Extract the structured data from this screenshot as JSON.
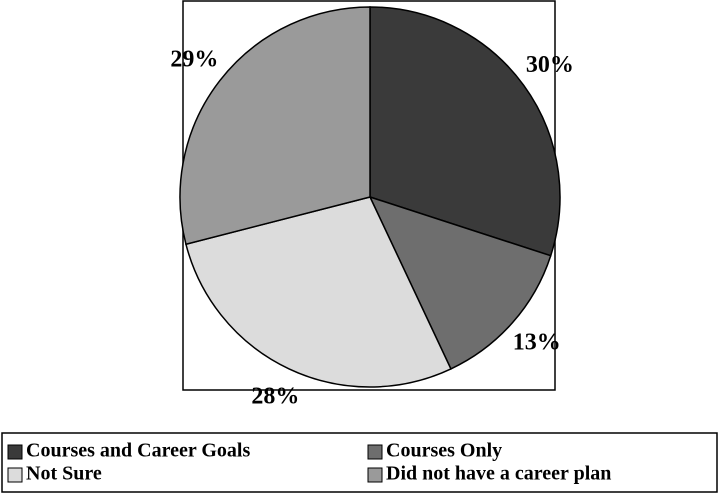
{
  "chart_data": {
    "type": "pie",
    "categories": [
      "Courses and Career Goals",
      "Courses Only",
      "Not Sure",
      "Did not have a career plan"
    ],
    "values": [
      30,
      13,
      28,
      29
    ],
    "value_labels": [
      "30%",
      "13%",
      "28%",
      "29%"
    ],
    "colors": [
      "#3a3a3a",
      "#6e6e6e",
      "#dcdcdc",
      "#9a9a9a"
    ]
  }
}
